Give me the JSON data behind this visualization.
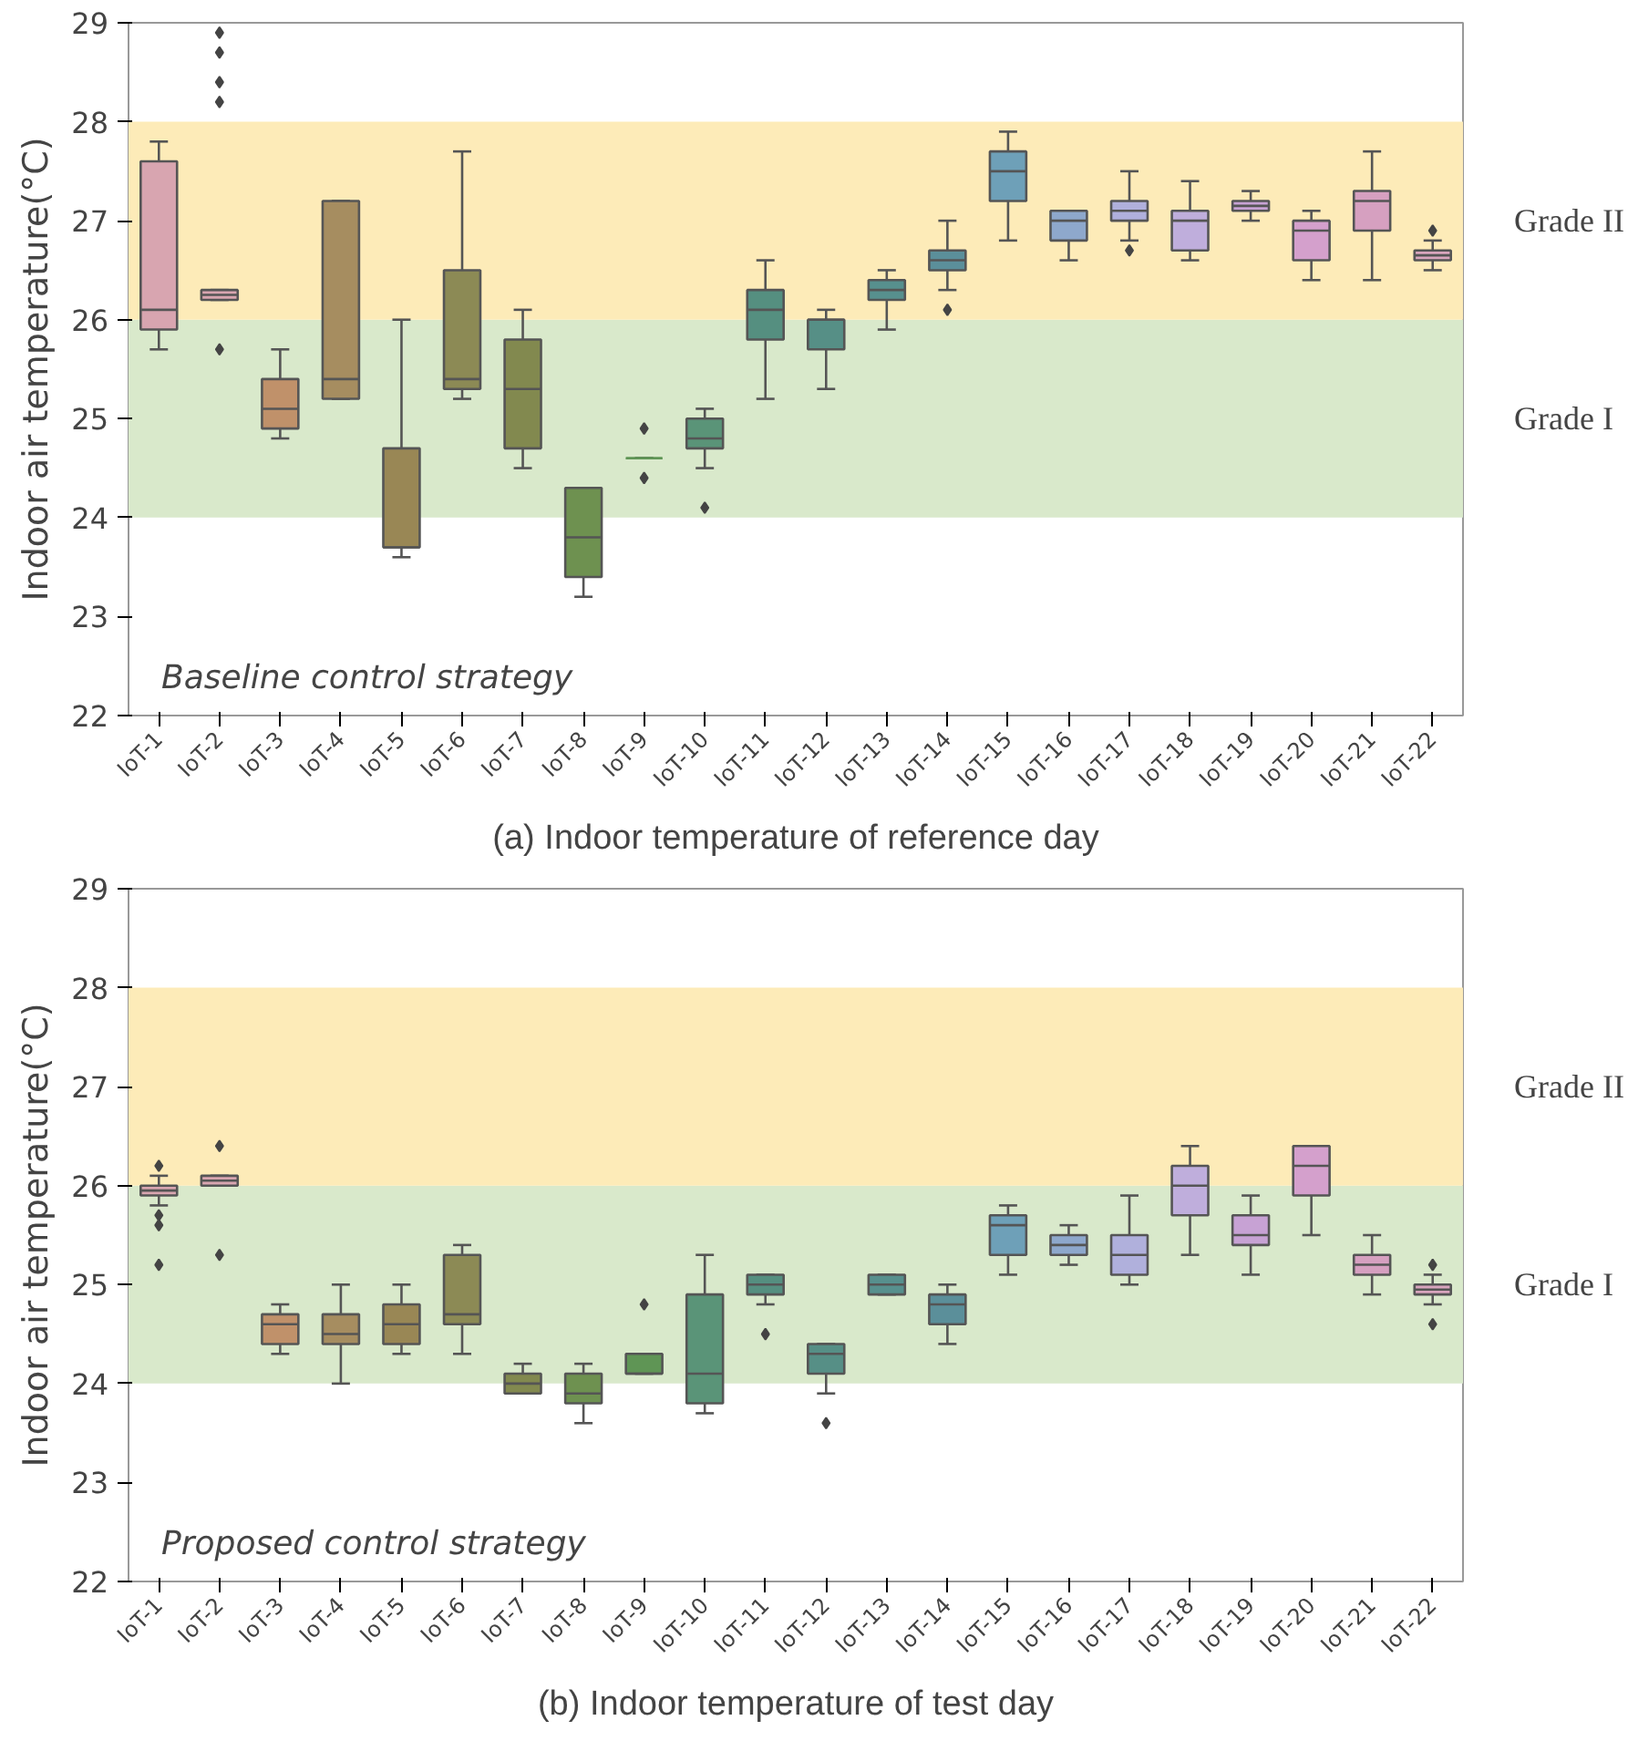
{
  "chart_data": [
    {
      "type": "box",
      "title": "(a) Indoor temperature of reference day",
      "ylabel": "Indoor air temperature(°C)",
      "ylim": [
        22,
        29
      ],
      "yticks": [
        22,
        23,
        24,
        25,
        26,
        27,
        28,
        29
      ],
      "grid": false,
      "marker": "diamond",
      "annotations": [
        "Baseline control strategy"
      ],
      "bands": [
        {
          "axis": "y",
          "from": 24,
          "to": 26,
          "label": "Grade I",
          "color": "#d9e9cb"
        },
        {
          "axis": "y",
          "from": 26,
          "to": 28,
          "label": "Grade II",
          "color": "#fdebb8"
        }
      ],
      "categories": [
        "IoT-1",
        "IoT-2",
        "IoT-3",
        "IoT-4",
        "IoT-5",
        "IoT-6",
        "IoT-7",
        "IoT-8",
        "IoT-9",
        "IoT-10",
        "IoT-11",
        "IoT-12",
        "IoT-13",
        "IoT-14",
        "IoT-15",
        "IoT-16",
        "IoT-17",
        "IoT-18",
        "IoT-19",
        "IoT-20",
        "IoT-21",
        "IoT-22"
      ],
      "colors": [
        "#d8a5b0",
        "#d8a5b0",
        "#c0916a",
        "#a68d60",
        "#998755",
        "#8c8a55",
        "#82894f",
        "#6e9150",
        "#5f9555",
        "#5a9478",
        "#558f80",
        "#568f86",
        "#57908e",
        "#5b8f9a",
        "#6ea0b8",
        "#8ea8cc",
        "#b0b0dc",
        "#bfaedc",
        "#c7a2d4",
        "#d4a0cc",
        "#d6a0c0",
        "#d8a5bd"
      ],
      "boxes": [
        {
          "low": 25.7,
          "q1": 25.9,
          "median": 26.1,
          "q3": 27.6,
          "high": 27.8
        },
        {
          "low": 26.2,
          "q1": 26.2,
          "median": 26.25,
          "q3": 26.3,
          "high": 26.3,
          "outliers": [
            25.7,
            28.2,
            28.4,
            28.7,
            28.9
          ]
        },
        {
          "low": 24.8,
          "q1": 24.9,
          "median": 25.1,
          "q3": 25.4,
          "high": 25.7
        },
        {
          "low": 25.2,
          "q1": 25.2,
          "median": 25.4,
          "q3": 27.2,
          "high": 27.2
        },
        {
          "low": 23.6,
          "q1": 23.7,
          "median": 23.7,
          "q3": 24.7,
          "high": 26.0
        },
        {
          "low": 25.2,
          "q1": 25.3,
          "median": 25.4,
          "q3": 26.5,
          "high": 27.7
        },
        {
          "low": 24.5,
          "q1": 24.7,
          "median": 25.3,
          "q3": 25.8,
          "high": 26.1
        },
        {
          "low": 23.2,
          "q1": 23.4,
          "median": 23.8,
          "q3": 24.3,
          "high": 24.3
        },
        {
          "low": 24.6,
          "q1": 24.6,
          "median": 24.6,
          "q3": 24.6,
          "high": 24.6,
          "outliers": [
            24.9,
            24.4
          ]
        },
        {
          "low": 24.5,
          "q1": 24.7,
          "median": 24.8,
          "q3": 25.0,
          "high": 25.1,
          "outliers": [
            24.1
          ]
        },
        {
          "low": 25.2,
          "q1": 25.8,
          "median": 26.1,
          "q3": 26.3,
          "high": 26.6
        },
        {
          "low": 25.3,
          "q1": 25.7,
          "median": 26.0,
          "q3": 26.0,
          "high": 26.1
        },
        {
          "low": 25.9,
          "q1": 26.2,
          "median": 26.3,
          "q3": 26.4,
          "high": 26.5
        },
        {
          "low": 26.3,
          "q1": 26.5,
          "median": 26.6,
          "q3": 26.7,
          "high": 27.0,
          "outliers": [
            26.1
          ]
        },
        {
          "low": 26.8,
          "q1": 27.2,
          "median": 27.5,
          "q3": 27.7,
          "high": 27.9
        },
        {
          "low": 26.6,
          "q1": 26.8,
          "median": 27.0,
          "q3": 27.1,
          "high": 27.1
        },
        {
          "low": 26.8,
          "q1": 27.0,
          "median": 27.1,
          "q3": 27.2,
          "high": 27.5,
          "outliers": [
            26.7
          ]
        },
        {
          "low": 26.6,
          "q1": 26.7,
          "median": 27.0,
          "q3": 27.1,
          "high": 27.4
        },
        {
          "low": 27.0,
          "q1": 27.1,
          "median": 27.15,
          "q3": 27.2,
          "high": 27.3
        },
        {
          "low": 26.4,
          "q1": 26.6,
          "median": 26.9,
          "q3": 27.0,
          "high": 27.1
        },
        {
          "low": 26.4,
          "q1": 26.9,
          "median": 27.2,
          "q3": 27.3,
          "high": 27.7
        },
        {
          "low": 26.5,
          "q1": 26.6,
          "median": 26.65,
          "q3": 26.7,
          "high": 26.8,
          "outliers": [
            26.9
          ]
        }
      ]
    },
    {
      "type": "box",
      "title": "(b) Indoor temperature of test day",
      "ylabel": "Indoor air temperature(°C)",
      "ylim": [
        22,
        29
      ],
      "yticks": [
        22,
        23,
        24,
        25,
        26,
        27,
        28,
        29
      ],
      "grid": false,
      "marker": "diamond",
      "annotations": [
        "Proposed control strategy"
      ],
      "bands": [
        {
          "axis": "y",
          "from": 24,
          "to": 26,
          "label": "Grade I",
          "color": "#d9e9cb"
        },
        {
          "axis": "y",
          "from": 26,
          "to": 28,
          "label": "Grade II",
          "color": "#fdebb8"
        }
      ],
      "categories": [
        "IoT-1",
        "IoT-2",
        "IoT-3",
        "IoT-4",
        "IoT-5",
        "IoT-6",
        "IoT-7",
        "IoT-8",
        "IoT-9",
        "IoT-10",
        "IoT-11",
        "IoT-12",
        "IoT-13",
        "IoT-14",
        "IoT-15",
        "IoT-16",
        "IoT-17",
        "IoT-18",
        "IoT-19",
        "IoT-20",
        "IoT-21",
        "IoT-22"
      ],
      "colors": [
        "#d8a5b0",
        "#d8a5b0",
        "#c0916a",
        "#a68d60",
        "#998755",
        "#8c8a55",
        "#82894f",
        "#6e9150",
        "#5f9555",
        "#5a9478",
        "#558f80",
        "#568f86",
        "#57908e",
        "#5b8f9a",
        "#6ea0b8",
        "#8ea8cc",
        "#b0b0dc",
        "#bfaedc",
        "#c7a2d4",
        "#d4a0cc",
        "#d6a0c0",
        "#d8a5bd"
      ],
      "boxes": [
        {
          "low": 25.8,
          "q1": 25.9,
          "median": 25.95,
          "q3": 26.0,
          "high": 26.1,
          "outliers": [
            26.2,
            25.7,
            25.6,
            25.2
          ]
        },
        {
          "low": 26.0,
          "q1": 26.0,
          "median": 26.05,
          "q3": 26.1,
          "high": 26.1,
          "outliers": [
            26.4,
            25.3
          ]
        },
        {
          "low": 24.3,
          "q1": 24.4,
          "median": 24.6,
          "q3": 24.7,
          "high": 24.8
        },
        {
          "low": 24.0,
          "q1": 24.4,
          "median": 24.5,
          "q3": 24.7,
          "high": 25.0
        },
        {
          "low": 24.3,
          "q1": 24.4,
          "median": 24.6,
          "q3": 24.8,
          "high": 25.0
        },
        {
          "low": 24.3,
          "q1": 24.6,
          "median": 24.7,
          "q3": 25.3,
          "high": 25.4
        },
        {
          "low": 23.9,
          "q1": 23.9,
          "median": 24.0,
          "q3": 24.1,
          "high": 24.2
        },
        {
          "low": 23.6,
          "q1": 23.8,
          "median": 23.9,
          "q3": 24.1,
          "high": 24.2
        },
        {
          "low": 24.1,
          "q1": 24.1,
          "median": 24.1,
          "q3": 24.3,
          "high": 24.3,
          "outliers": [
            24.8
          ]
        },
        {
          "low": 23.7,
          "q1": 23.8,
          "median": 24.1,
          "q3": 24.9,
          "high": 25.3
        },
        {
          "low": 24.8,
          "q1": 24.9,
          "median": 25.0,
          "q3": 25.1,
          "high": 25.1,
          "outliers": [
            24.5
          ]
        },
        {
          "low": 23.9,
          "q1": 24.1,
          "median": 24.3,
          "q3": 24.4,
          "high": 24.4,
          "outliers": [
            23.6
          ]
        },
        {
          "low": 24.9,
          "q1": 24.9,
          "median": 25.0,
          "q3": 25.1,
          "high": 25.1
        },
        {
          "low": 24.4,
          "q1": 24.6,
          "median": 24.8,
          "q3": 24.9,
          "high": 25.0
        },
        {
          "low": 25.1,
          "q1": 25.3,
          "median": 25.6,
          "q3": 25.7,
          "high": 25.8
        },
        {
          "low": 25.2,
          "q1": 25.3,
          "median": 25.4,
          "q3": 25.5,
          "high": 25.6
        },
        {
          "low": 25.0,
          "q1": 25.1,
          "median": 25.3,
          "q3": 25.5,
          "high": 25.9
        },
        {
          "low": 25.3,
          "q1": 25.7,
          "median": 26.0,
          "q3": 26.2,
          "high": 26.4
        },
        {
          "low": 25.1,
          "q1": 25.4,
          "median": 25.5,
          "q3": 25.7,
          "high": 25.9
        },
        {
          "low": 25.5,
          "q1": 25.9,
          "median": 26.2,
          "q3": 26.4,
          "high": 26.4
        },
        {
          "low": 24.9,
          "q1": 25.1,
          "median": 25.2,
          "q3": 25.3,
          "high": 25.5
        },
        {
          "low": 24.8,
          "q1": 24.9,
          "median": 24.95,
          "q3": 25.0,
          "high": 25.1,
          "outliers": [
            25.2,
            24.6
          ]
        }
      ]
    }
  ]
}
